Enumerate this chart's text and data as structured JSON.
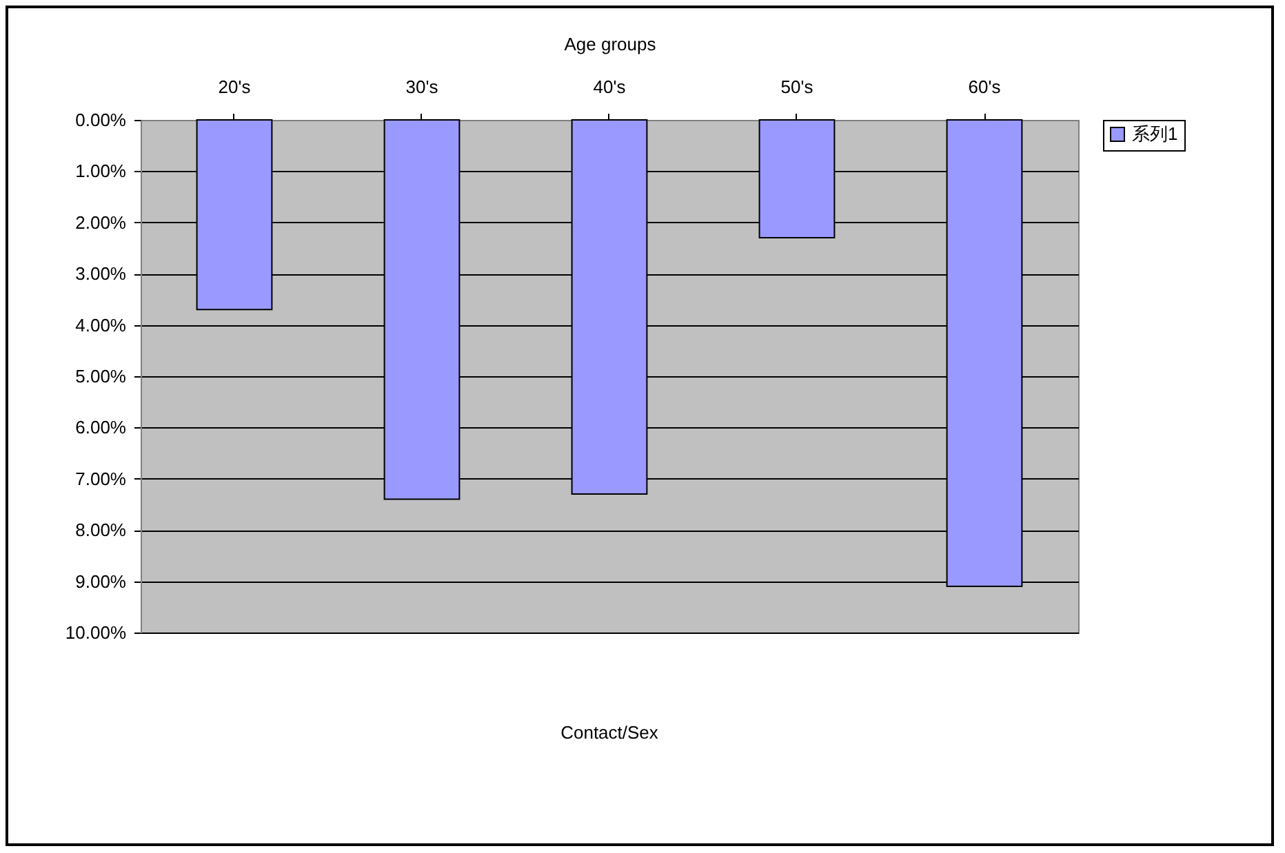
{
  "chart_data": {
    "type": "bar",
    "title": "Contact/Sex",
    "xlabel": "Age groups",
    "categories": [
      "20's",
      "30's",
      "40's",
      "50's",
      "60's"
    ],
    "series": [
      {
        "name": "系列1",
        "color": "#9999ff",
        "values": [
          3.7,
          7.4,
          7.3,
          2.3,
          9.1
        ]
      }
    ],
    "ylim": [
      10,
      0
    ],
    "yticks": [
      {
        "value": 0,
        "label": "0.00%"
      },
      {
        "value": 1,
        "label": "1.00%"
      },
      {
        "value": 2,
        "label": "2.00%"
      },
      {
        "value": 3,
        "label": "3.00%"
      },
      {
        "value": 4,
        "label": "4.00%"
      },
      {
        "value": 5,
        "label": "5.00%"
      },
      {
        "value": 6,
        "label": "6.00%"
      },
      {
        "value": 7,
        "label": "7.00%"
      },
      {
        "value": 8,
        "label": "8.00%"
      },
      {
        "value": 9,
        "label": "9.00%"
      },
      {
        "value": 10,
        "label": "10.00%"
      }
    ],
    "grid": "y",
    "legend": "right"
  }
}
